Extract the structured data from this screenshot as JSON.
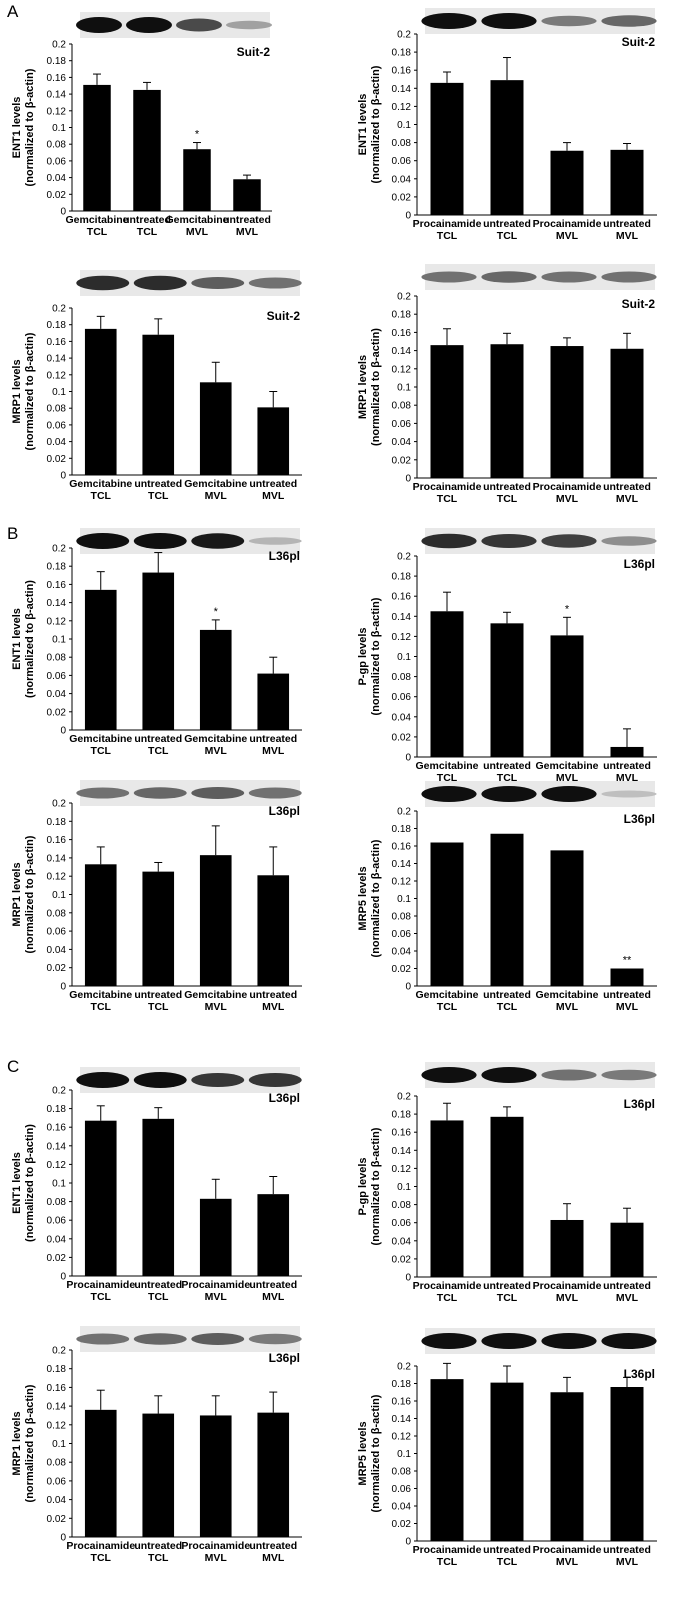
{
  "panel_labels": [
    "A",
    "B",
    "C"
  ],
  "chart_data": [
    {
      "type": "bar",
      "panel": "A",
      "cell_line": "Suit-2",
      "ylabel_line1": "ENT1 levels",
      "ylabel_line2": "(normalized to β-actin)",
      "ylim": [
        0,
        0.2
      ],
      "yticks": [
        "0",
        "0.02",
        "0.04",
        "0.06",
        "0.08",
        "0.1",
        "0.12",
        "0.14",
        "0.16",
        "0.18",
        "0.2"
      ],
      "categories": [
        [
          "Gemcitabine",
          "TCL"
        ],
        [
          "untreated",
          "TCL"
        ],
        [
          "Gemcitabine",
          "MVL"
        ],
        [
          "untreated",
          "MVL"
        ]
      ],
      "values": [
        0.151,
        0.145,
        0.074,
        0.038
      ],
      "errors": [
        0.013,
        0.009,
        0.008,
        0.005
      ],
      "annotations": [
        "",
        "",
        "*",
        ""
      ],
      "blot_intensity": [
        1.0,
        1.0,
        0.7,
        0.25
      ]
    },
    {
      "type": "bar",
      "panel": "A",
      "cell_line": "Suit-2",
      "ylabel_line1": "ENT1 levels",
      "ylabel_line2": "(normalized to β-actin)",
      "ylim": [
        0,
        0.2
      ],
      "yticks": [
        "0",
        "0.02",
        "0.04",
        "0.06",
        "0.08",
        "0.1",
        "0.12",
        "0.14",
        "0.16",
        "0.18",
        "0.2"
      ],
      "categories": [
        [
          "Procainamide",
          "TCL"
        ],
        [
          "untreated",
          "TCL"
        ],
        [
          "Procainamide",
          "MVL"
        ],
        [
          "untreated",
          "MVL"
        ]
      ],
      "values": [
        0.146,
        0.149,
        0.071,
        0.072
      ],
      "errors": [
        0.012,
        0.025,
        0.009,
        0.007
      ],
      "annotations": [
        "",
        "",
        "",
        ""
      ],
      "blot_intensity": [
        1.0,
        1.0,
        0.45,
        0.55
      ]
    },
    {
      "type": "bar",
      "panel": "A",
      "cell_line": "Suit-2",
      "ylabel_line1": "MRP1 levels",
      "ylabel_line2": "(normalized to β-actin)",
      "ylim": [
        0,
        0.2
      ],
      "yticks": [
        "0",
        "0.02",
        "0.04",
        "0.06",
        "0.08",
        "0.1",
        "0.12",
        "0.14",
        "0.16",
        "0.18",
        "0.2"
      ],
      "categories": [
        [
          "Gemcitabine",
          "TCL"
        ],
        [
          "untreated",
          "TCL"
        ],
        [
          "Gemcitabine",
          "MVL"
        ],
        [
          "untreated",
          "MVL"
        ]
      ],
      "values": [
        0.175,
        0.168,
        0.111,
        0.081
      ],
      "errors": [
        0.015,
        0.019,
        0.024,
        0.019
      ],
      "annotations": [
        "",
        "",
        "",
        ""
      ],
      "blot_intensity": [
        0.85,
        0.85,
        0.6,
        0.5
      ]
    },
    {
      "type": "bar",
      "panel": "A",
      "cell_line": "Suit-2",
      "ylabel_line1": "MRP1 levels",
      "ylabel_line2": "(normalized to β-actin)",
      "ylim": [
        0,
        0.2
      ],
      "yticks": [
        "0",
        "0.02",
        "0.04",
        "0.06",
        "0.08",
        "0.1",
        "0.12",
        "0.14",
        "0.16",
        "0.18",
        "0.2"
      ],
      "categories": [
        [
          "Procainamide",
          "TCL"
        ],
        [
          "untreated",
          "TCL"
        ],
        [
          "Procainamide",
          "MVL"
        ],
        [
          "untreated",
          "MVL"
        ]
      ],
      "values": [
        0.146,
        0.147,
        0.145,
        0.142
      ],
      "errors": [
        0.018,
        0.012,
        0.009,
        0.017
      ],
      "annotations": [
        "",
        "",
        "",
        ""
      ],
      "blot_intensity": [
        0.5,
        0.55,
        0.5,
        0.5
      ]
    },
    {
      "type": "bar",
      "panel": "B",
      "cell_line": "L36pl",
      "ylabel_line1": "ENT1 levels",
      "ylabel_line2": "(normalized to β-actin)",
      "ylim": [
        0,
        0.2
      ],
      "yticks": [
        "0",
        "0.02",
        "0.04",
        "0.06",
        "0.08",
        "0.1",
        "0.12",
        "0.14",
        "0.16",
        "0.18",
        "0.2"
      ],
      "categories": [
        [
          "Gemcitabine",
          "TCL"
        ],
        [
          "untreated",
          "TCL"
        ],
        [
          "Gemcitabine",
          "MVL"
        ],
        [
          "untreated",
          "MVL"
        ]
      ],
      "values": [
        0.154,
        0.173,
        0.11,
        0.062
      ],
      "errors": [
        0.02,
        0.022,
        0.011,
        0.018
      ],
      "annotations": [
        "",
        "",
        "*",
        ""
      ],
      "blot_intensity": [
        1.0,
        1.0,
        0.95,
        0.15
      ]
    },
    {
      "type": "bar",
      "panel": "B",
      "cell_line": "L36pl",
      "ylabel_line1": "P-gp levels",
      "ylabel_line2": "(normalized to β-actin)",
      "ylim": [
        0,
        0.2
      ],
      "yticks": [
        "0",
        "0.02",
        "0.04",
        "0.06",
        "0.08",
        "0.1",
        "0.12",
        "0.14",
        "0.16",
        "0.18",
        "0.2"
      ],
      "categories": [
        [
          "Gemcitabine",
          "TCL"
        ],
        [
          "untreated",
          "TCL"
        ],
        [
          "Gemcitabine",
          "MVL"
        ],
        [
          "untreated",
          "MVL"
        ]
      ],
      "values": [
        0.145,
        0.133,
        0.121,
        0.01
      ],
      "errors": [
        0.019,
        0.011,
        0.018,
        0.018
      ],
      "annotations": [
        "",
        "",
        "*",
        ""
      ],
      "blot_intensity": [
        0.85,
        0.8,
        0.75,
        0.35
      ]
    },
    {
      "type": "bar",
      "panel": "B",
      "cell_line": "L36pl",
      "ylabel_line1": "MRP1 levels",
      "ylabel_line2": "(normalized to β-actin)",
      "ylim": [
        0,
        0.2
      ],
      "yticks": [
        "0",
        "0.02",
        "0.04",
        "0.06",
        "0.08",
        "0.1",
        "0.12",
        "0.14",
        "0.16",
        "0.18",
        "0.2"
      ],
      "categories": [
        [
          "Gemcitabine",
          "TCL"
        ],
        [
          "untreated",
          "TCL"
        ],
        [
          "Gemcitabine",
          "MVL"
        ],
        [
          "untreated",
          "MVL"
        ]
      ],
      "values": [
        0.133,
        0.125,
        0.143,
        0.121
      ],
      "errors": [
        0.019,
        0.01,
        0.032,
        0.031
      ],
      "annotations": [
        "",
        "",
        "",
        ""
      ],
      "blot_intensity": [
        0.5,
        0.55,
        0.6,
        0.5
      ]
    },
    {
      "type": "bar",
      "panel": "B",
      "cell_line": "L36pl",
      "ylabel_line1": "MRP5 levels",
      "ylabel_line2": "(normalized to β-actin)",
      "ylim": [
        0,
        0.2
      ],
      "yticks": [
        "0",
        "0.02",
        "0.04",
        "0.06",
        "0.08",
        "0.1",
        "0.12",
        "0.14",
        "0.16",
        "0.18",
        "0.2"
      ],
      "categories": [
        [
          "Gemcitabine",
          "TCL"
        ],
        [
          "untreated",
          "TCL"
        ],
        [
          "Gemcitabine",
          "MVL"
        ],
        [
          "untreated",
          "MVL"
        ]
      ],
      "values": [
        0.164,
        0.174,
        0.155,
        0.02
      ],
      "errors": [
        0,
        0,
        0,
        0
      ],
      "annotations": [
        "",
        "",
        "",
        "**"
      ],
      "blot_intensity": [
        1.0,
        1.0,
        1.0,
        0.1
      ]
    },
    {
      "type": "bar",
      "panel": "C",
      "cell_line": "L36pl",
      "ylabel_line1": "ENT1 levels",
      "ylabel_line2": "(normalized to β-actin)",
      "ylim": [
        0,
        0.2
      ],
      "yticks": [
        "0",
        "0.02",
        "0.04",
        "0.06",
        "0.08",
        "0.1",
        "0.12",
        "0.14",
        "0.16",
        "0.18",
        "0.2"
      ],
      "categories": [
        [
          "Procainamide",
          "TCL"
        ],
        [
          "untreated",
          "TCL"
        ],
        [
          "Procainamide",
          "MVL"
        ],
        [
          "untreated",
          "MVL"
        ]
      ],
      "values": [
        0.167,
        0.169,
        0.083,
        0.088
      ],
      "errors": [
        0.016,
        0.012,
        0.021,
        0.019
      ],
      "annotations": [
        "",
        "",
        "",
        ""
      ],
      "blot_intensity": [
        1.0,
        1.0,
        0.8,
        0.8
      ]
    },
    {
      "type": "bar",
      "panel": "C",
      "cell_line": "L36pl",
      "ylabel_line1": "P-gp levels",
      "ylabel_line2": "(normalized to β-actin)",
      "ylim": [
        0,
        0.2
      ],
      "yticks": [
        "0",
        "0.02",
        "0.04",
        "0.06",
        "0.08",
        "0.1",
        "0.12",
        "0.14",
        "0.16",
        "0.18",
        "0.2"
      ],
      "categories": [
        [
          "Procainamide",
          "TCL"
        ],
        [
          "untreated",
          "TCL"
        ],
        [
          "Procainamide",
          "MVL"
        ],
        [
          "untreated",
          "MVL"
        ]
      ],
      "values": [
        0.173,
        0.177,
        0.063,
        0.06
      ],
      "errors": [
        0.019,
        0.011,
        0.018,
        0.016
      ],
      "annotations": [
        "",
        "",
        "",
        ""
      ],
      "blot_intensity": [
        1.0,
        1.0,
        0.5,
        0.45
      ]
    },
    {
      "type": "bar",
      "panel": "C",
      "cell_line": "L36pl",
      "ylabel_line1": "MRP1 levels",
      "ylabel_line2": "(normalized to β-actin)",
      "ylim": [
        0,
        0.2
      ],
      "yticks": [
        "0",
        "0.02",
        "0.04",
        "0.06",
        "0.08",
        "0.1",
        "0.12",
        "0.14",
        "0.16",
        "0.18",
        "0.2"
      ],
      "categories": [
        [
          "Procainamide",
          "TCL"
        ],
        [
          "untreated",
          "TCL"
        ],
        [
          "Procainamide",
          "MVL"
        ],
        [
          "untreated",
          "MVL"
        ]
      ],
      "values": [
        0.136,
        0.132,
        0.13,
        0.133
      ],
      "errors": [
        0.021,
        0.019,
        0.021,
        0.022
      ],
      "annotations": [
        "",
        "",
        "",
        ""
      ],
      "blot_intensity": [
        0.5,
        0.55,
        0.6,
        0.45
      ]
    },
    {
      "type": "bar",
      "panel": "C",
      "cell_line": "L36pl",
      "ylabel_line1": "MRP5 levels",
      "ylabel_line2": "(normalized to β-actin)",
      "ylim": [
        0,
        0.2
      ],
      "yticks": [
        "0",
        "0.02",
        "0.04",
        "0.06",
        "0.08",
        "0.1",
        "0.12",
        "0.14",
        "0.16",
        "0.18",
        "0.2"
      ],
      "categories": [
        [
          "Procainamide",
          "TCL"
        ],
        [
          "untreated",
          "TCL"
        ],
        [
          "Procainamide",
          "MVL"
        ],
        [
          "untreated",
          "MVL"
        ]
      ],
      "values": [
        0.185,
        0.181,
        0.17,
        0.176
      ],
      "errors": [
        0.018,
        0.019,
        0.017,
        0.011
      ],
      "annotations": [
        "",
        "",
        "",
        ""
      ],
      "blot_intensity": [
        1.0,
        1.0,
        1.0,
        1.0
      ]
    }
  ]
}
